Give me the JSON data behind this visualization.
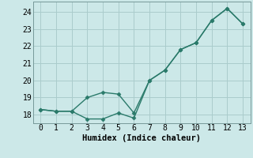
{
  "line1_x": [
    0,
    1,
    2,
    3,
    4,
    5,
    6,
    7,
    8,
    9,
    10,
    11,
    12,
    13
  ],
  "line1_y": [
    18.3,
    18.2,
    18.2,
    19.0,
    19.3,
    19.2,
    18.1,
    20.0,
    20.6,
    21.8,
    22.2,
    23.5,
    24.2,
    23.3
  ],
  "line2_x": [
    0,
    1,
    2,
    3,
    4,
    5,
    6,
    7,
    8,
    9,
    10,
    11,
    12,
    13
  ],
  "line2_y": [
    18.3,
    18.2,
    18.2,
    17.75,
    17.75,
    18.1,
    17.8,
    20.0,
    20.6,
    21.8,
    22.2,
    23.5,
    24.2,
    23.3
  ],
  "line_color": "#2a7a6a",
  "bg_color": "#cce8e8",
  "grid_color": "#aacccc",
  "xlabel": "Humidex (Indice chaleur)",
  "xlim": [
    -0.5,
    13.5
  ],
  "ylim": [
    17.5,
    24.6
  ],
  "yticks": [
    18,
    19,
    20,
    21,
    22,
    23,
    24
  ],
  "xticks": [
    0,
    1,
    2,
    3,
    4,
    5,
    6,
    7,
    8,
    9,
    10,
    11,
    12,
    13
  ],
  "marker": "D",
  "markersize": 2.5,
  "linewidth": 1.0,
  "xlabel_fontsize": 7.5,
  "tick_fontsize": 7.0
}
